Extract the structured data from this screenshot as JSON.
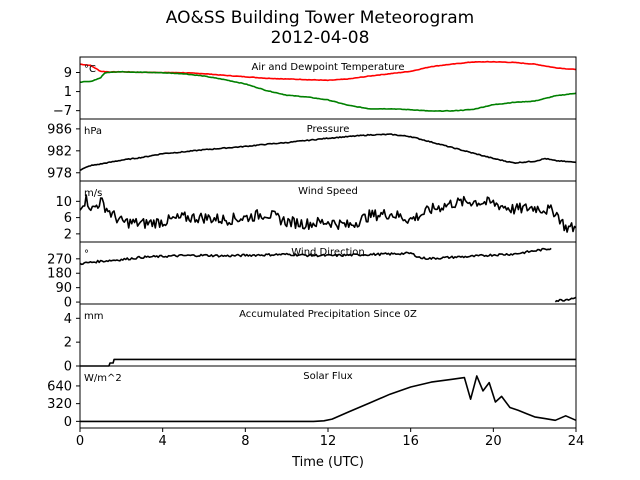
{
  "title": "AO&SS Building Tower Meteorogram",
  "subtitle": "2012-04-08",
  "colors": {
    "temperature": "#ff0000",
    "dewpoint": "#008000",
    "line": "#000000",
    "frame": "#000000",
    "background": "#ffffff"
  },
  "chart_data": {
    "type": "line",
    "xlabel": "Time (UTC)",
    "xlim": [
      0,
      24
    ],
    "x_ticks": [
      0,
      4,
      8,
      12,
      16,
      20,
      24
    ],
    "x_tick_labels": [
      "0",
      "4",
      "8",
      "12",
      "16",
      "20",
      "24"
    ],
    "grid": false,
    "legend": "none",
    "panels": [
      {
        "id": "temp",
        "title": "Air and Dewpoint Temperature",
        "unit": "°C",
        "ylim": [
          -10.5,
          15.5
        ],
        "y_ticks": [
          -7,
          1,
          9
        ],
        "y_tick_labels": [
          "−7",
          "1",
          "9"
        ],
        "series": [
          {
            "color": "#ff0000",
            "x": [
              0,
              0.5,
              1,
              1.5,
              2,
              3,
              4,
              5,
              6,
              7,
              8,
              9,
              10,
              11,
              12,
              13,
              14,
              15,
              16,
              17,
              18,
              19,
              20,
              21,
              22,
              23,
              24
            ],
            "y": [
              12.5,
              12,
              9.5,
              9.2,
              9.3,
              9.1,
              9,
              8.9,
              8.5,
              7.8,
              7.2,
              6.6,
              6.3,
              6,
              5.7,
              6.3,
              7.5,
              8.5,
              9.5,
              11.5,
              12.5,
              13.4,
              13.5,
              13.2,
              12.5,
              11,
              10.2
            ]
          },
          {
            "color": "#008000",
            "x": [
              0,
              0.5,
              1,
              1.2,
              1.5,
              2,
              3,
              4,
              5,
              6,
              7,
              8,
              9,
              10,
              11,
              12,
              13,
              14,
              15,
              16,
              17,
              18,
              19,
              20,
              21,
              22,
              23,
              24
            ],
            "y": [
              5,
              5.2,
              6.8,
              8.8,
              9.2,
              9.3,
              9.1,
              8.9,
              8.5,
              7.5,
              6,
              4.2,
              1.5,
              -0.5,
              -1.3,
              -2.5,
              -4.8,
              -6.2,
              -6.2,
              -6.6,
              -7.2,
              -7.1,
              -6.5,
              -4.5,
              -3.5,
              -3,
              -0.8,
              0.3
            ]
          }
        ]
      },
      {
        "id": "pressure",
        "title": "Pressure",
        "unit": "hPa",
        "ylim": [
          976.5,
          987.8
        ],
        "y_ticks": [
          978,
          982,
          986
        ],
        "y_tick_labels": [
          "978",
          "982",
          "986"
        ],
        "series": [
          {
            "color": "#000000",
            "x": [
              0,
              0.5,
              1,
              2,
              3,
              4,
              5,
              6,
              7,
              8,
              9,
              10,
              11,
              12,
              13,
              14,
              15,
              16,
              17,
              18,
              19,
              20,
              21,
              22,
              22.5,
              23,
              24
            ],
            "y": [
              978.5,
              979.3,
              979.6,
              980.3,
              980.8,
              981.5,
              981.8,
              982.2,
              982.5,
              982.8,
              983.2,
              983.5,
              983.9,
              984.3,
              984.6,
              984.9,
              985,
              984.6,
              983.6,
              982.6,
              981.6,
              980.6,
              979.8,
              980.1,
              980.6,
              980.2,
              979.9
            ]
          }
        ]
      },
      {
        "id": "wind_speed",
        "title": "Wind Speed",
        "unit": "m/s",
        "ylim": [
          0,
          15
        ],
        "y_ticks": [
          2,
          6,
          10
        ],
        "y_tick_labels": [
          "2",
          "6",
          "10"
        ],
        "series": [
          {
            "color": "#000000",
            "x": [
              0,
              0.3,
              0.6,
              1,
              1.5,
              2,
              3,
              4,
              5,
              6,
              7,
              8,
              9,
              10,
              11,
              12,
              13,
              14,
              15,
              16,
              17,
              18,
              19,
              20,
              21,
              22,
              23,
              23.5,
              24
            ],
            "y": [
              9,
              10.5,
              8,
              10,
              7,
              5,
              4.5,
              5,
              6,
              6,
              5.5,
              6,
              7,
              5,
              4.5,
              5,
              4,
              6.5,
              7,
              5.5,
              8,
              9.5,
              10,
              9.5,
              8,
              8.5,
              7.5,
              3.5,
              3.5
            ]
          }
        ]
      },
      {
        "id": "wind_direction",
        "title": "Wind Direction",
        "unit": "°",
        "ylim": [
          -12,
          375
        ],
        "y_ticks": [
          0,
          90,
          180,
          270
        ],
        "y_tick_labels": [
          "0",
          "90",
          "180",
          "270"
        ],
        "series": [
          {
            "color": "#000000",
            "x": [
              0,
              1,
              2,
              3,
              4,
              5,
              6,
              7,
              8,
              9,
              10,
              11,
              12,
              13,
              14,
              15,
              16,
              16.5,
              17,
              18,
              19,
              20,
              21,
              22,
              22.8
            ],
            "y": [
              240,
              255,
              265,
              280,
              285,
              290,
              292,
              288,
              292,
              295,
              298,
              292,
              290,
              293,
              297,
              300,
              305,
              275,
              272,
              280,
              285,
              295,
              300,
              320,
              335
            ]
          },
          {
            "color": "#000000",
            "x": [
              23,
              23.5,
              24
            ],
            "y": [
              8,
              15,
              30
            ]
          }
        ]
      },
      {
        "id": "precip",
        "title": "Accumulated Precipitation Since 0Z",
        "unit": "mm",
        "ylim": [
          0,
          5.2
        ],
        "y_ticks": [
          0,
          2,
          4
        ],
        "y_tick_labels": [
          "0",
          "2",
          "4"
        ],
        "series": [
          {
            "color": "#000000",
            "x": [
              0,
              1.4,
              1.45,
              1.6,
              1.65,
              24
            ],
            "y": [
              0,
              0,
              0.25,
              0.25,
              0.55,
              0.55
            ]
          }
        ]
      },
      {
        "id": "solar",
        "title": "Solar Flux",
        "unit": "W/m^2",
        "ylim": [
          -120,
          1000
        ],
        "y_ticks": [
          0,
          320,
          640
        ],
        "y_tick_labels": [
          "0",
          "320",
          "640"
        ],
        "series": [
          {
            "color": "#000000",
            "x": [
              0,
              6,
              11.3,
              11.8,
              12.2,
              13,
              14,
              15,
              16,
              17,
              18,
              18.6,
              18.9,
              19.2,
              19.5,
              19.8,
              20.1,
              20.4,
              20.8,
              21.2,
              21.6,
              22,
              22.5,
              23,
              23.5,
              24
            ],
            "y": [
              0,
              0,
              0,
              10,
              40,
              170,
              330,
              490,
              620,
              710,
              760,
              790,
              400,
              820,
              550,
              700,
              350,
              450,
              250,
              200,
              140,
              80,
              50,
              20,
              100,
              20
            ]
          }
        ]
      }
    ]
  }
}
